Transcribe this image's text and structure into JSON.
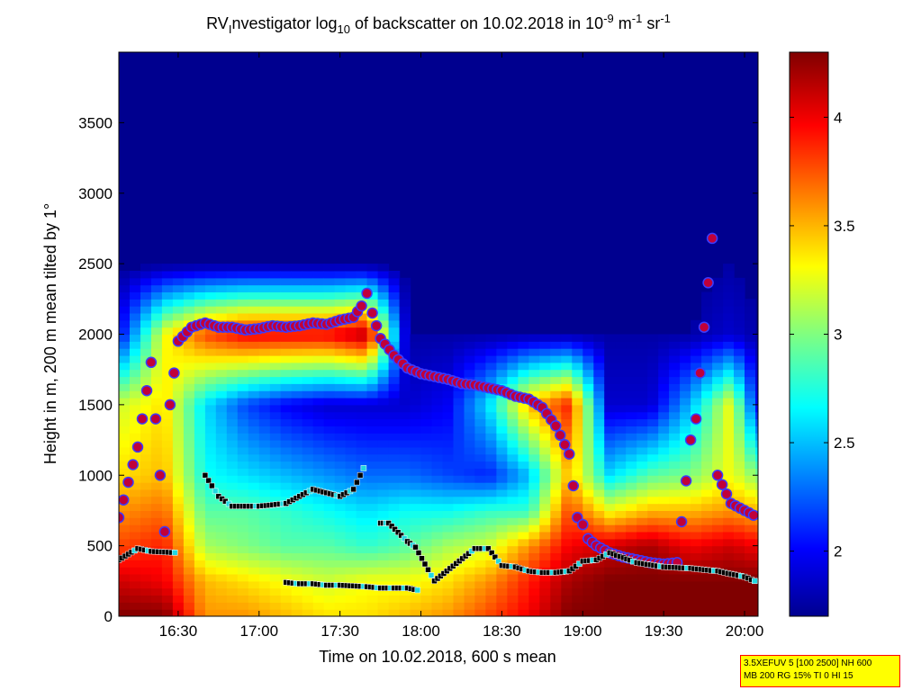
{
  "chart_data": {
    "type": "heatmap",
    "title": {
      "prefix": "RV",
      "sub1": "I",
      "mid": "nvestigator log",
      "sub2": "10",
      "rest": " of backscatter on 10.02.2018 in 10",
      "sup1": "-9",
      "unit_m": " m",
      "sup2": "-1",
      "unit_sr": " sr",
      "sup3": "-1"
    },
    "xlabel": "Time on 10.02.2018, 600 s mean",
    "ylabel": "Height in m, 200 m mean tilted by 1°",
    "x_ticks": [
      "16:30",
      "17:00",
      "17:30",
      "18:00",
      "18:30",
      "19:00",
      "19:30",
      "20:00"
    ],
    "x_tick_values_min": [
      990,
      1020,
      1050,
      1080,
      1110,
      1140,
      1170,
      1200
    ],
    "xlim_min": [
      968,
      1205
    ],
    "y_ticks": [
      "0",
      "500",
      "1000",
      "1500",
      "2000",
      "2500",
      "3000",
      "3500"
    ],
    "y_tick_values": [
      0,
      500,
      1000,
      1500,
      2000,
      2500,
      3000,
      3500
    ],
    "ylim": [
      0,
      4000
    ],
    "colorbar": {
      "ticks": [
        "2",
        "2.5",
        "3",
        "3.5",
        "4"
      ],
      "tick_values": [
        2,
        2.5,
        3,
        3.5,
        4
      ],
      "range": [
        1.7,
        4.3
      ],
      "colormap": "jet"
    },
    "boundary_layer_top": {
      "name": "layer top (red dots)",
      "times_min": [
        968,
        975,
        980,
        985,
        987,
        990,
        995,
        1000,
        1005,
        1010,
        1015,
        1020,
        1025,
        1030,
        1035,
        1040,
        1045,
        1050,
        1055,
        1058,
        1060,
        1062,
        1065,
        1070,
        1075,
        1080,
        1085,
        1090,
        1095,
        1100,
        1105,
        1110,
        1115,
        1120,
        1125,
        1130,
        1135,
        1138,
        1140,
        1142,
        1145,
        1150,
        1155,
        1160,
        1165,
        1170,
        1175,
        1180,
        1182,
        1185,
        1188,
        1190,
        1195,
        1200,
        1205
      ],
      "heights_m": [
        700,
        1200,
        1800,
        600,
        1500,
        1950,
        2050,
        2080,
        2050,
        2050,
        2030,
        2040,
        2060,
        2050,
        2060,
        2080,
        2070,
        2100,
        2120,
        2200,
        2290,
        2150,
        1970,
        1850,
        1760,
        1720,
        1700,
        1680,
        1650,
        1640,
        1620,
        1600,
        1560,
        1540,
        1480,
        1350,
        1150,
        700,
        650,
        550,
        500,
        450,
        420,
        400,
        380,
        370,
        380,
        1250,
        1400,
        2050,
        2680,
        1000,
        800,
        750,
        700
      ]
    },
    "lower_layer": {
      "name": "lower layer (black/cyan squares)",
      "times_min": [
        968,
        975,
        980,
        990,
        1000,
        1005,
        1010,
        1020,
        1030,
        1040,
        1050,
        1055,
        1060,
        1065,
        1068,
        1075,
        1078,
        1085,
        1100,
        1105,
        1110,
        1115,
        1120,
        1125,
        1130,
        1135,
        1140,
        1145,
        1150,
        1160,
        1170,
        1180,
        1190,
        1200,
        1205
      ],
      "heights_m": [
        400,
        480,
        460,
        450,
        1000,
        850,
        780,
        780,
        800,
        900,
        850,
        900,
        1100,
        660,
        660,
        530,
        490,
        250,
        480,
        480,
        360,
        350,
        320,
        310,
        310,
        320,
        390,
        400,
        450,
        380,
        350,
        340,
        320,
        280,
        240
      ]
    },
    "secondary_layer": {
      "name": "secondary layer (squares near ground)",
      "times_min": [
        1030,
        1035,
        1040,
        1045,
        1050,
        1060,
        1065,
        1070,
        1075,
        1080
      ],
      "heights_m": [
        240,
        230,
        230,
        220,
        220,
        210,
        200,
        200,
        200,
        180
      ]
    },
    "intensity_grid": {
      "times_min": [
        968,
        985,
        1000,
        1015,
        1030,
        1045,
        1060,
        1075,
        1090,
        1105,
        1120,
        1135,
        1150,
        1165,
        1180,
        1195,
        1205
      ],
      "heights_m": [
        0,
        250,
        500,
        750,
        1000,
        1500,
        2000,
        2500,
        3000,
        4000
      ],
      "values": [
        [
          4.3,
          4.3,
          3.6,
          3.6,
          3.5,
          3.4,
          3.4,
          3.5,
          3.6,
          3.8,
          4.0,
          4.3,
          4.3,
          4.3,
          4.3,
          4.3,
          4.3
        ],
        [
          4.1,
          4.0,
          3.5,
          3.4,
          3.3,
          3.2,
          3.3,
          3.3,
          3.4,
          3.6,
          3.9,
          4.2,
          4.3,
          4.3,
          4.3,
          4.3,
          4.3
        ],
        [
          3.8,
          3.9,
          3.1,
          3.0,
          2.9,
          2.9,
          2.8,
          2.9,
          3.1,
          3.2,
          3.6,
          4.0,
          4.1,
          4.2,
          4.0,
          4.1,
          4.0
        ],
        [
          3.6,
          3.7,
          2.9,
          2.9,
          2.8,
          2.7,
          2.6,
          2.7,
          2.7,
          2.8,
          2.8,
          3.8,
          3.3,
          3.5,
          3.5,
          3.6,
          3.5
        ],
        [
          3.4,
          3.5,
          2.7,
          2.6,
          2.5,
          2.4,
          2.3,
          2.3,
          2.2,
          2.1,
          2.5,
          3.5,
          2.6,
          2.9,
          3.0,
          3.3,
          3.0
        ],
        [
          3.2,
          3.4,
          2.6,
          2.2,
          2.0,
          1.9,
          1.9,
          1.9,
          2.0,
          2.6,
          3.5,
          3.9,
          1.9,
          1.9,
          2.5,
          3.3,
          2.0
        ],
        [
          2.0,
          3.3,
          3.8,
          4.0,
          4.0,
          4.0,
          4.2,
          1.8,
          1.8,
          1.8,
          1.8,
          1.8,
          1.8,
          1.8,
          1.8,
          1.9,
          1.8
        ],
        [
          1.75,
          1.75,
          1.75,
          1.75,
          1.75,
          1.75,
          1.75,
          1.75,
          1.75,
          1.75,
          1.75,
          1.75,
          1.75,
          1.75,
          1.75,
          1.8,
          1.75
        ],
        [
          1.75,
          1.75,
          1.75,
          1.75,
          1.75,
          1.75,
          1.75,
          1.75,
          1.75,
          1.75,
          1.75,
          1.75,
          1.75,
          1.75,
          1.75,
          1.75,
          1.75
        ],
        [
          1.75,
          1.75,
          1.75,
          1.75,
          1.75,
          1.75,
          1.75,
          1.75,
          1.75,
          1.75,
          1.75,
          1.75,
          1.75,
          1.75,
          1.75,
          1.75,
          1.75
        ]
      ]
    }
  },
  "info_box": {
    "line1": "3.5XEFUV 5 [100 2500] NH 600",
    "line2": "MB 200 RG 15% TI 0 HI 15"
  },
  "colors": {
    "background": "#ffffff",
    "plot_fill": "#00008f",
    "marker_outline": "#ffffff",
    "marker_top": "#c0003a",
    "marker_top_border": "#3b3bff",
    "square_black": "#000000",
    "square_cyan": "#22d8e0",
    "info_box": "#ffff00",
    "info_border": "#ff0000"
  }
}
